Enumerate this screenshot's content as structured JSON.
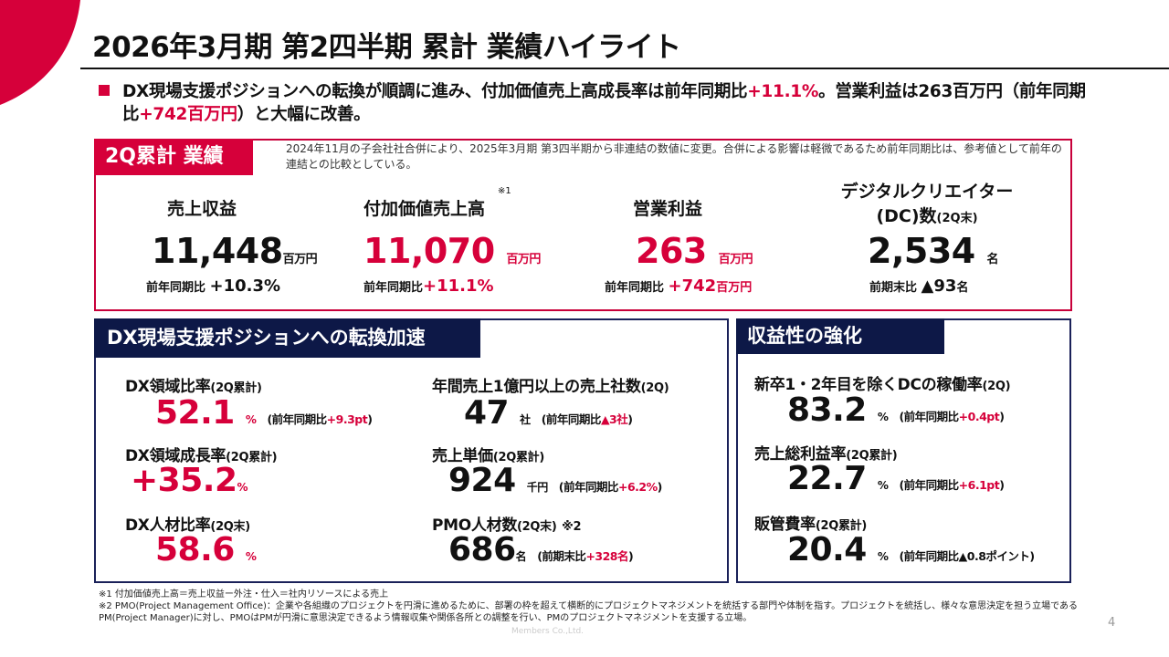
{
  "title": "2026年3月期 第2四半期 累計 業績ハイライト",
  "lead": {
    "part1": "DX現場支援ポジションへの転換が順調に進み、付加価値売上高成長率は前年同期比",
    "part2": "+11.1%",
    "part3": "。営業利益は263百万円（前年同期比",
    "part4": "+742百万円",
    "part5": "）と大幅に改善。"
  },
  "results": {
    "tab": "2Q累計 業績",
    "note": "2024年11月の子会社社合併により、2025年3月期 第3四半期から非連結の数値に変更。合併による影響は軽微であるため前年同期比は、参考値として前年の連結との比較としている。",
    "revenue": {
      "label": "売上収益",
      "value": "11,448",
      "unit": "百万円",
      "sub_label": "前年同期比 ",
      "sub_value": "+10.3%"
    },
    "value_added": {
      "label": "付加価値売上高",
      "note_mark": "※1",
      "value": "11,070",
      "unit": "百万円",
      "sub_label": "前年同期比",
      "sub_value": "+11.1%"
    },
    "operating_profit": {
      "label": "営業利益",
      "value": "263",
      "unit": "百万円",
      "sub_label": "前年同期比 ",
      "sub_value": "+742",
      "sub_unit": "百万円"
    },
    "dc": {
      "label_line1": "デジタルクリエイター",
      "label_line2": "(DC)数",
      "label_small": "(2Q末)",
      "value": "2,534",
      "unit": "名",
      "sub_label": "前期末比 ",
      "sub_value": "▲93",
      "sub_unit": "名"
    }
  },
  "dx": {
    "tab": "DX現場支援ポジションへの転換加速",
    "items": [
      {
        "label": "DX領域比率",
        "label_small": "(2Q累計)",
        "value": "52.1",
        "unit": "%",
        "paren_a": "(前年同期比",
        "paren_b": "+9.3pt",
        "paren_c": ")"
      },
      {
        "label": "DX領域成長率",
        "label_small": "(2Q累計)",
        "value": "+35.2",
        "unit": "%"
      },
      {
        "label": "DX人材比率",
        "label_small": "(2Q末)",
        "value": "58.6",
        "unit": "%"
      },
      {
        "label": "年間売上1億円以上の売上社数",
        "label_small": "(2Q)",
        "value": "47",
        "unit": "社",
        "paren_a": "(前年同期比",
        "paren_b": "▲3社",
        "paren_c": ")"
      },
      {
        "label": "売上単価",
        "label_small": "(2Q累計)",
        "value": "924",
        "unit": "千円",
        "paren_a": "(前年同期比",
        "paren_b": "+6.2%",
        "paren_c": ")"
      },
      {
        "label": "PMO人材数",
        "label_small": "(2Q末)",
        "label_note": "※2",
        "value": "686",
        "unit": "名",
        "paren_a": "(前期末比",
        "paren_b": "+328名",
        "paren_c": ")"
      }
    ]
  },
  "profitability": {
    "tab": "収益性の強化",
    "items": [
      {
        "label": "新卒1・2年目を除くDCの稼働率",
        "label_small": "(2Q)",
        "value": "83.2",
        "unit": "%",
        "paren_a": "(前年同期比",
        "paren_b": "+0.4pt",
        "paren_c": ")"
      },
      {
        "label": "売上総利益率",
        "label_small": "(2Q累計)",
        "value": "22.7",
        "unit": "%",
        "paren_a": "(前年同期比",
        "paren_b": "+6.1pt",
        "paren_c": ")"
      },
      {
        "label": "販管費率",
        "label_small": "(2Q累計)",
        "value": "20.4",
        "unit": "%",
        "paren_a": "(前年同期比▲0.8ポイント)"
      }
    ]
  },
  "footnotes": {
    "n1": "※1 付加価値売上高＝売上収益ー外注・仕入＝社内リソースによる売上",
    "n2": "※2 PMO(Project Management Office)：企業や各組織のプロジェクトを円滑に進めるために、部署の枠を超えて横断的にプロジェクトマネジメントを統括する部門や体制を指す。プロジェクトを統括し、様々な意思決定を担う立場であるPM(Project Manager)に対し、PMOはPMが円滑に意思決定できるよう情報収集や関係各所との調整を行い、PMのプロジェクトマネジメントを支援する立場。"
  },
  "company": "Members Co.,Ltd.",
  "page_number": "4",
  "colors": {
    "accent_red": "#d6003a",
    "navy": "#0d1847"
  }
}
